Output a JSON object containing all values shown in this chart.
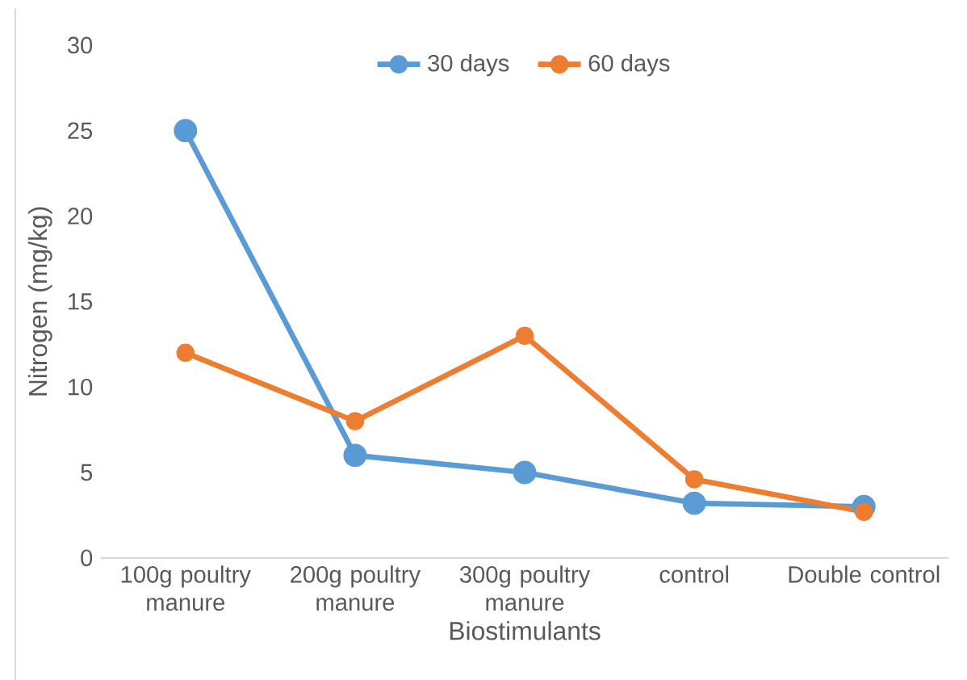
{
  "chart_data": {
    "type": "line",
    "xlabel": "Biostimulants",
    "ylabel": "Nitrogen  (mg/kg)",
    "categories": [
      "100g poultry manure",
      "200g poultry manure",
      "300g poultry manure",
      "control",
      "Double control"
    ],
    "series": [
      {
        "name": "30 days",
        "color": "#5b9bd5",
        "values": [
          25,
          6,
          5,
          3.2,
          3
        ]
      },
      {
        "name": "60 days",
        "color": "#ed7d31",
        "values": [
          12,
          8,
          13,
          4.6,
          2.7
        ]
      }
    ],
    "ylim": [
      0,
      30
    ],
    "yticks": [
      0,
      5,
      10,
      15,
      20,
      25,
      30
    ],
    "grid": false,
    "legend": "top",
    "marker": "circle",
    "line_style": "solid"
  }
}
